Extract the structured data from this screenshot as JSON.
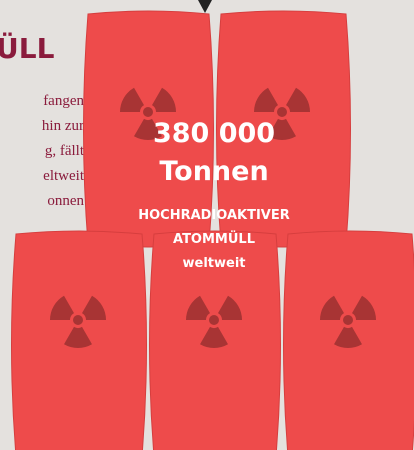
{
  "header": {
    "title": "ÜLL"
  },
  "body_lines": [
    "fangen",
    "hin zur",
    "g, fällt",
    "eltweit",
    "onnen"
  ],
  "figure": {
    "value": "380 000",
    "unit": "Tonnen",
    "label_lines": [
      "HOCHRADIOAKTIVER",
      "ATOMMÜLL"
    ],
    "scope": "weltweit"
  }
}
